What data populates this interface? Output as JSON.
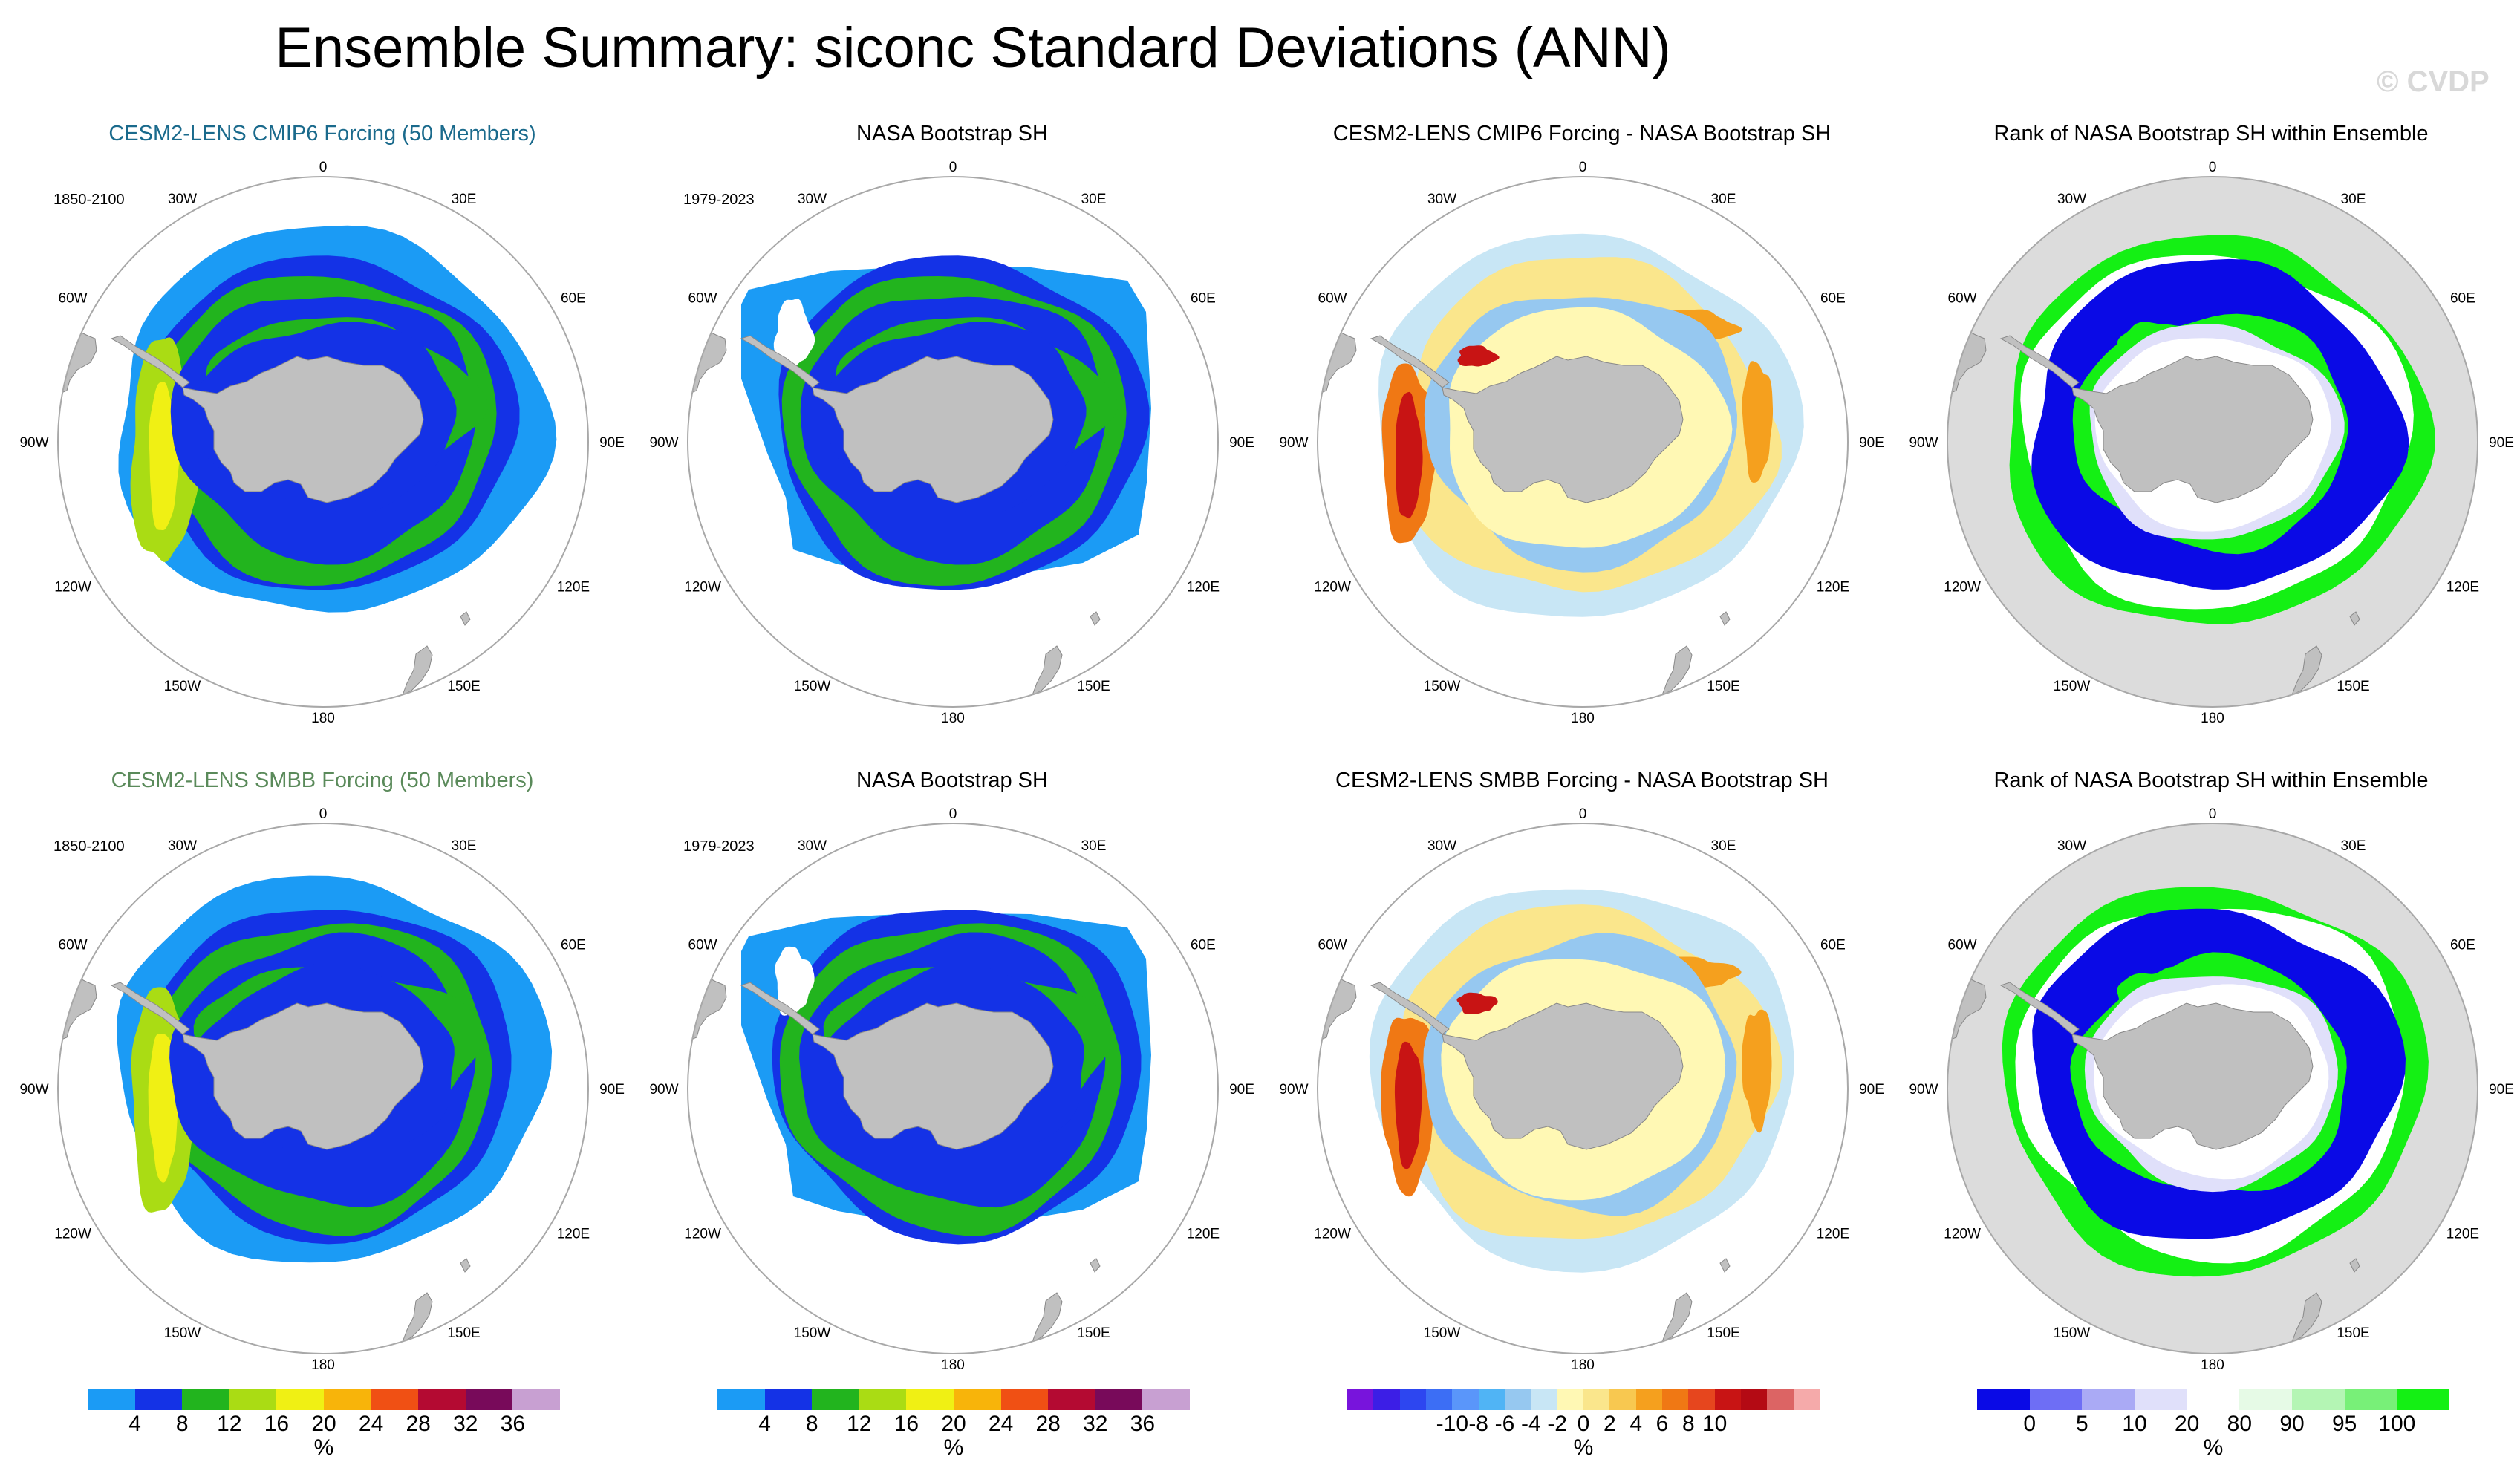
{
  "title": "Ensemble Summary: siconc Standard Deviations (ANN)",
  "watermark": "© CVDP",
  "map_labels": {
    "north": "0",
    "south": "180",
    "nw": "30W",
    "ne": "30E",
    "wnw": "60W",
    "ene": "60E",
    "west": "90W",
    "east": "90E",
    "wsw": "120W",
    "ese": "120E",
    "sw": "150W",
    "se": "150E"
  },
  "panels": {
    "r1c1": {
      "title": "CESM2-LENS CMIP6 Forcing (50 Members)",
      "date": "1850-2100",
      "title_color": "#1a6a8c"
    },
    "r1c2": {
      "title": "NASA Bootstrap SH",
      "date": "1979-2023",
      "title_color": "#000000"
    },
    "r1c3": {
      "title": "CESM2-LENS CMIP6 Forcing - NASA Bootstrap SH",
      "date": "",
      "title_color": "#000000"
    },
    "r1c4": {
      "title": "Rank of NASA Bootstrap SH within Ensemble",
      "date": "",
      "title_color": "#000000"
    },
    "r2c1": {
      "title": "CESM2-LENS SMBB Forcing (50 Members)",
      "date": "1850-2100",
      "title_color": "#5a8a5a"
    },
    "r2c2": {
      "title": "NASA Bootstrap SH",
      "date": "1979-2023",
      "title_color": "#000000"
    },
    "r2c3": {
      "title": "CESM2-LENS SMBB Forcing - NASA Bootstrap SH",
      "date": "",
      "title_color": "#000000"
    },
    "r2c4": {
      "title": "Rank of NASA Bootstrap SH within Ensemble",
      "date": "",
      "title_color": "#000000"
    }
  },
  "colorbars": {
    "stddev": {
      "unit": "%",
      "colors": [
        "#1b9bf5",
        "#1432e6",
        "#22b41e",
        "#aadc14",
        "#f0f014",
        "#f8b40a",
        "#f05014",
        "#b40a32",
        "#780a5a",
        "#c8a0d2"
      ],
      "ticks": [
        "4",
        "8",
        "12",
        "16",
        "20",
        "24",
        "28",
        "32",
        "36"
      ]
    },
    "difference": {
      "unit": "%",
      "colors": [
        "#7814dc",
        "#3c1ee6",
        "#2d46f0",
        "#3c6ef5",
        "#5a96fa",
        "#50b4f5",
        "#96c8f0",
        "#c8e6f5",
        "#fff8b4",
        "#fae68c",
        "#f8c850",
        "#f5a01e",
        "#f07814",
        "#e6461e",
        "#c81414",
        "#b40a14",
        "#dc6464",
        "#f5aaaa"
      ],
      "ticks": [
        "-10",
        "-8",
        "-6",
        "-4",
        "-2",
        "0",
        "2",
        "4",
        "6",
        "8",
        "10"
      ]
    },
    "rank": {
      "unit": "%",
      "colors": [
        "#0a0ae6",
        "#6e6ef5",
        "#aaaaf5",
        "#e0e0fa",
        "#ffffff",
        "#e6fae6",
        "#b4f5b4",
        "#78f078",
        "#14f014"
      ],
      "ticks": [
        "0",
        "5",
        "10",
        "20",
        "80",
        "90",
        "95",
        "100"
      ]
    }
  }
}
